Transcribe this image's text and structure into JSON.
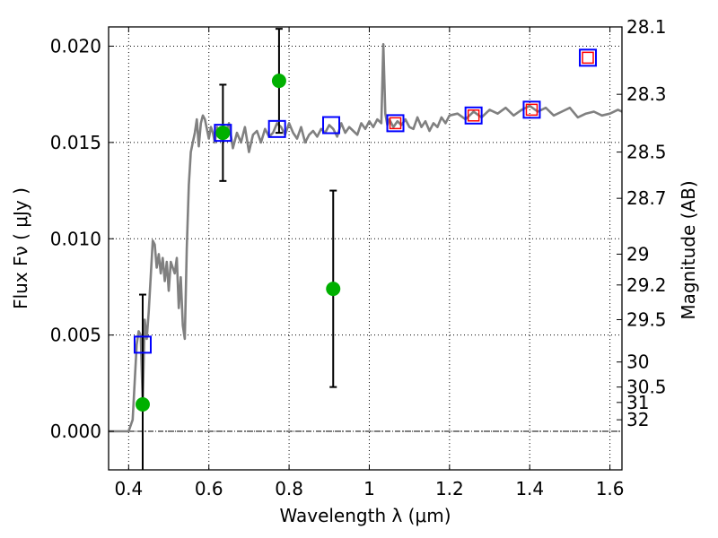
{
  "chart_data": {
    "type": "scatter",
    "xlabel": "Wavelength  λ (μm)",
    "ylabel_left": "Flux  Fν  ( μJy )",
    "ylabel_right": "Magnitude (AB)",
    "xlim": [
      0.35,
      1.63
    ],
    "ylim": [
      -0.002,
      0.021
    ],
    "xticks": [
      0.4,
      0.6,
      0.8,
      1.0,
      1.2,
      1.4,
      1.6
    ],
    "xtick_labels": [
      "0.4",
      "0.6",
      "0.8",
      "1",
      "1.2",
      "1.4",
      "1.6"
    ],
    "yticks": [
      0.0,
      0.005,
      0.01,
      0.015,
      0.02
    ],
    "ytick_labels": [
      "0.000",
      "0.005",
      "0.010",
      "0.015",
      "0.020"
    ],
    "right_ticks": [
      {
        "label": "28.1",
        "flux": 0.021
      },
      {
        "label": "28.3",
        "flux": 0.0175
      },
      {
        "label": "28.5",
        "flux": 0.0145
      },
      {
        "label": "28.7",
        "flux": 0.0121
      },
      {
        "label": "29",
        "flux": 0.0092
      },
      {
        "label": "29.2",
        "flux": 0.0076
      },
      {
        "label": "29.5",
        "flux": 0.0058
      },
      {
        "label": "30",
        "flux": 0.0036
      },
      {
        "label": "30.5",
        "flux": 0.0023
      },
      {
        "label": "31",
        "flux": 0.0015
      },
      {
        "label": "32",
        "flux": 0.0006
      }
    ],
    "grid": true,
    "zero_line": true,
    "colors": {
      "model": "#808080",
      "observed": "#00b000",
      "model_phot": "#0000ff",
      "model_phot_inner": "#ff0000",
      "errorbar": "#000000"
    },
    "series": [
      {
        "type": "line",
        "x": [
          0.35,
          0.39,
          0.4,
          0.41,
          0.415,
          0.42,
          0.425,
          0.43,
          0.435,
          0.44,
          0.445,
          0.45,
          0.455,
          0.46,
          0.465,
          0.47,
          0.475,
          0.48,
          0.485,
          0.49,
          0.495,
          0.5,
          0.505,
          0.51,
          0.515,
          0.52,
          0.525,
          0.53,
          0.535,
          0.54,
          0.545,
          0.55,
          0.555,
          0.56,
          0.565,
          0.57,
          0.575,
          0.58,
          0.585,
          0.59,
          0.6,
          0.605,
          0.61,
          0.615,
          0.62,
          0.63,
          0.64,
          0.65,
          0.66,
          0.67,
          0.68,
          0.69,
          0.7,
          0.71,
          0.72,
          0.73,
          0.74,
          0.75,
          0.76,
          0.77,
          0.78,
          0.79,
          0.8,
          0.81,
          0.82,
          0.83,
          0.84,
          0.85,
          0.86,
          0.87,
          0.88,
          0.89,
          0.9,
          0.91,
          0.92,
          0.93,
          0.94,
          0.95,
          0.96,
          0.97,
          0.98,
          0.99,
          1.0,
          1.01,
          1.02,
          1.03,
          1.035,
          1.04,
          1.045,
          1.05,
          1.06,
          1.07,
          1.08,
          1.09,
          1.1,
          1.11,
          1.12,
          1.13,
          1.14,
          1.15,
          1.16,
          1.17,
          1.18,
          1.19,
          1.2,
          1.22,
          1.24,
          1.26,
          1.28,
          1.3,
          1.32,
          1.34,
          1.36,
          1.38,
          1.4,
          1.42,
          1.44,
          1.46,
          1.48,
          1.5,
          1.52,
          1.54,
          1.56,
          1.58,
          1.6,
          1.62,
          1.63
        ],
        "y": [
          0.0,
          0.0,
          0.0,
          0.0006,
          0.0025,
          0.0045,
          0.0052,
          0.005,
          0.0015,
          0.0058,
          0.0048,
          0.0062,
          0.008,
          0.0099,
          0.0097,
          0.0085,
          0.0092,
          0.0082,
          0.009,
          0.0078,
          0.0088,
          0.0073,
          0.0088,
          0.0085,
          0.0082,
          0.009,
          0.0064,
          0.008,
          0.0055,
          0.0048,
          0.0095,
          0.0128,
          0.0145,
          0.015,
          0.0155,
          0.0162,
          0.0148,
          0.016,
          0.0164,
          0.0162,
          0.0152,
          0.0158,
          0.0155,
          0.015,
          0.0158,
          0.0152,
          0.0154,
          0.016,
          0.0147,
          0.0155,
          0.015,
          0.0158,
          0.0145,
          0.0154,
          0.0156,
          0.015,
          0.0157,
          0.0153,
          0.0155,
          0.016,
          0.0158,
          0.0154,
          0.016,
          0.0155,
          0.0152,
          0.0158,
          0.015,
          0.0154,
          0.0156,
          0.0153,
          0.0157,
          0.0155,
          0.0159,
          0.0157,
          0.0153,
          0.016,
          0.0155,
          0.0158,
          0.0156,
          0.0154,
          0.016,
          0.0157,
          0.0161,
          0.0158,
          0.0162,
          0.016,
          0.0201,
          0.0165,
          0.0159,
          0.0162,
          0.0158,
          0.0161,
          0.0159,
          0.0162,
          0.0158,
          0.0157,
          0.0163,
          0.0158,
          0.0161,
          0.0156,
          0.016,
          0.0158,
          0.0163,
          0.016,
          0.0164,
          0.0165,
          0.0162,
          0.0166,
          0.0163,
          0.0167,
          0.0165,
          0.0168,
          0.0164,
          0.0167,
          0.0169,
          0.0166,
          0.0168,
          0.0164,
          0.0166,
          0.0168,
          0.0163,
          0.0165,
          0.0166,
          0.0164,
          0.0165,
          0.0167,
          0.0166
        ]
      },
      {
        "type": "scatter",
        "marker": "circle",
        "x": [
          0.435,
          0.635,
          0.775,
          0.91
        ],
        "y": [
          0.0014,
          0.0155,
          0.0182,
          0.0074
        ],
        "yerr": [
          0.0057,
          0.0025,
          0.0027,
          0.0051
        ]
      },
      {
        "type": "scatter",
        "marker": "square",
        "x": [
          0.435,
          0.635,
          0.77,
          0.905,
          1.065,
          1.26,
          1.405,
          1.545
        ],
        "y": [
          0.0045,
          0.0155,
          0.0157,
          0.0159,
          0.016,
          0.0164,
          0.0167,
          0.0194
        ]
      },
      {
        "type": "scatter",
        "marker": "square-inner",
        "x": [
          1.065,
          1.26,
          1.405,
          1.545
        ],
        "y": [
          0.016,
          0.0164,
          0.0167,
          0.0194
        ]
      }
    ]
  }
}
